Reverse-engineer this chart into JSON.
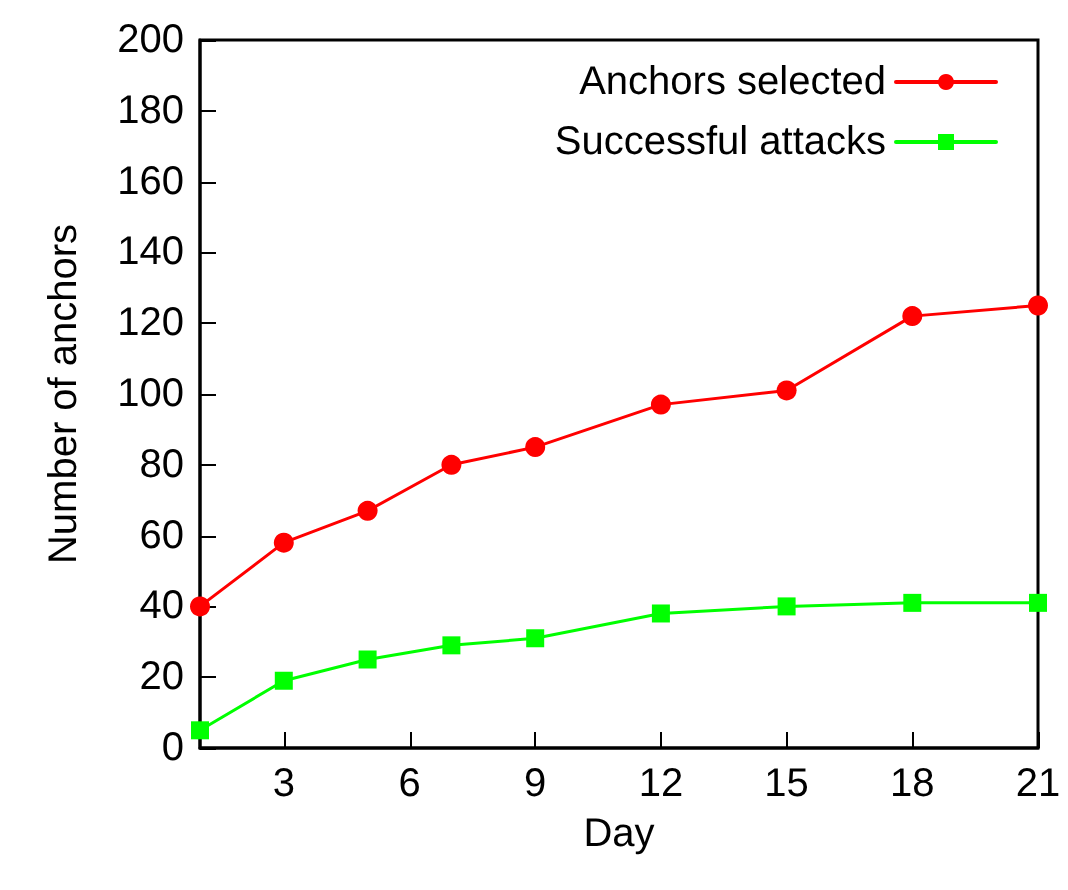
{
  "chart_data": {
    "type": "line",
    "xlabel": "Day",
    "ylabel": "Number of anchors",
    "x": [
      1,
      3,
      5,
      7,
      9,
      12,
      15,
      18,
      21
    ],
    "series": [
      {
        "name": "Anchors selected",
        "color": "#ff0000",
        "marker": "circle",
        "values": [
          40,
          58,
          67,
          80,
          85,
          97,
          101,
          122,
          125
        ]
      },
      {
        "name": "Successful attacks",
        "color": "#00ff00",
        "marker": "square",
        "values": [
          5,
          19,
          25,
          29,
          31,
          38,
          40,
          41,
          41
        ]
      }
    ],
    "xlim": [
      1,
      21
    ],
    "xticks": [
      3,
      6,
      9,
      12,
      15,
      18,
      21
    ],
    "ylim": [
      0,
      200
    ],
    "yticks": [
      0,
      20,
      40,
      60,
      80,
      100,
      120,
      140,
      160,
      180,
      200
    ],
    "grid": false,
    "legend": "top right",
    "line_style": "solid"
  }
}
